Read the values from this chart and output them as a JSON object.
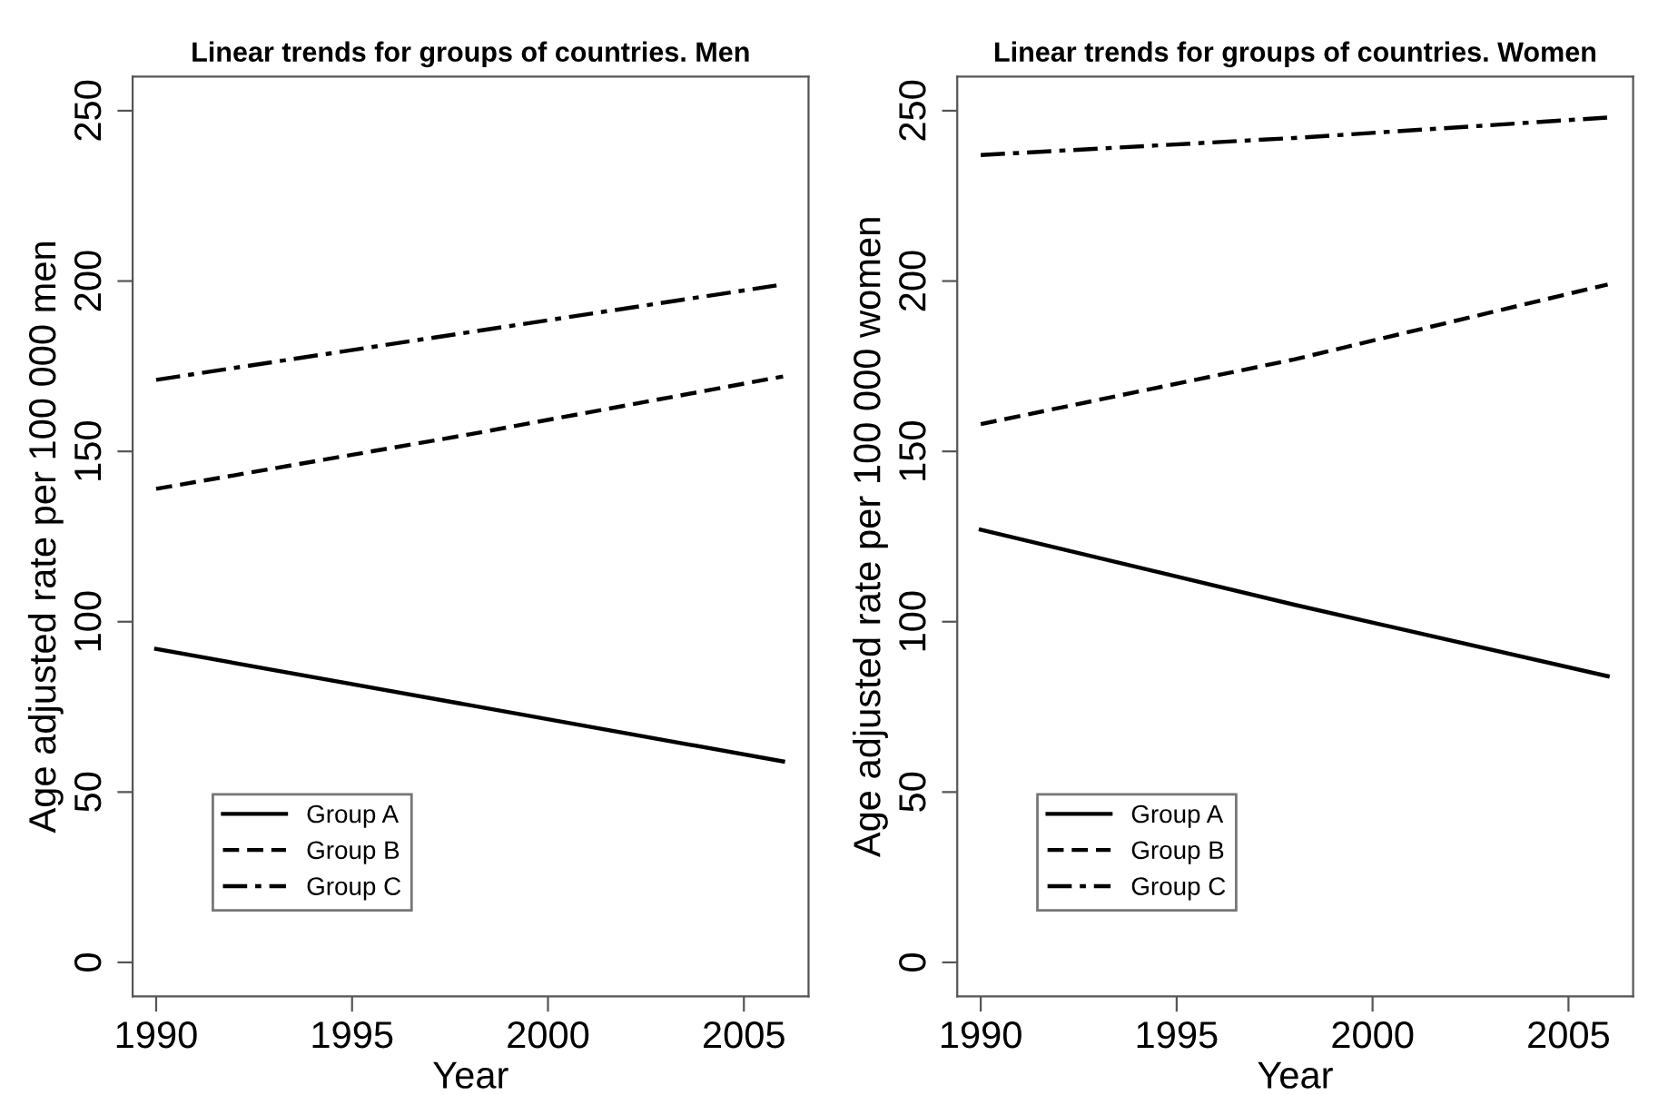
{
  "chart_data": [
    {
      "type": "line",
      "title": "Linear trends for groups of countries. Men",
      "xlabel": "Year",
      "ylabel": "Age adjusted rate per 100 000 men",
      "x": [
        1990,
        1998,
        2006
      ],
      "series": [
        {
          "name": "Group A",
          "color": "#000000",
          "line_style": "solid",
          "values": [
            92,
            75.5,
            59
          ]
        },
        {
          "name": "Group B",
          "color": "#000000",
          "line_style": "dashed",
          "values": [
            139,
            155,
            172
          ]
        },
        {
          "name": "Group C",
          "color": "#000000",
          "line_style": "dashdot",
          "values": [
            171,
            185,
            199
          ]
        }
      ],
      "xlim": [
        1989.4,
        2006.65
      ],
      "xticks": [
        1990,
        1995,
        2000,
        2005
      ],
      "ylim": [
        -10,
        260
      ],
      "yticks": [
        0,
        50,
        100,
        150,
        200,
        250
      ],
      "grid": false,
      "legend": "bottom left",
      "marker": "none"
    },
    {
      "type": "line",
      "title": "Linear trends for groups of countries. Women",
      "xlabel": "Year",
      "ylabel": "Age adjusted rate per 100 000 women",
      "x": [
        1990,
        1998,
        2006
      ],
      "series": [
        {
          "name": "Group A",
          "color": "#000000",
          "line_style": "solid",
          "values": [
            127,
            105,
            84
          ]
        },
        {
          "name": "Group B",
          "color": "#000000",
          "line_style": "dashed",
          "values": [
            158,
            177,
            199
          ]
        },
        {
          "name": "Group C",
          "color": "#000000",
          "line_style": "dashdot",
          "values": [
            237,
            242,
            248
          ]
        }
      ],
      "xlim": [
        1989.4,
        2006.65
      ],
      "xticks": [
        1990,
        1995,
        2000,
        2005
      ],
      "ylim": [
        -10,
        260
      ],
      "yticks": [
        0,
        50,
        100,
        150,
        200,
        250
      ],
      "grid": false,
      "legend": "bottom left",
      "marker": "none"
    }
  ]
}
